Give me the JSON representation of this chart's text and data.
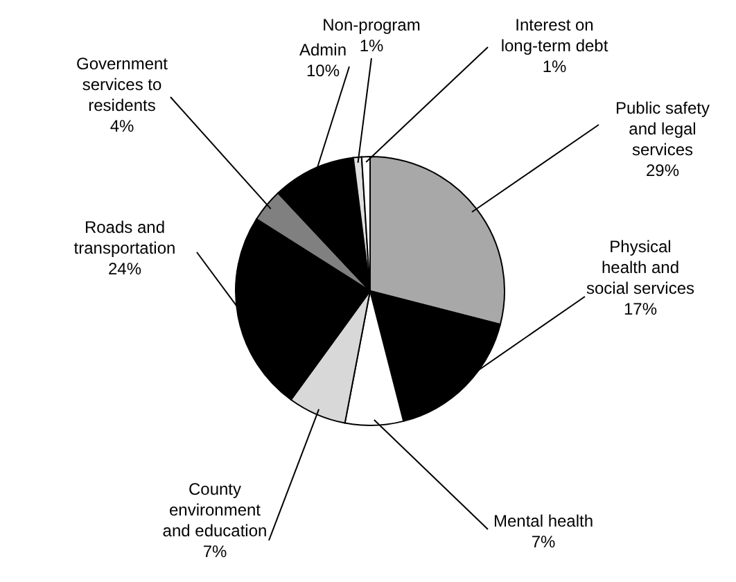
{
  "chart_data": {
    "type": "pie",
    "categories": [
      "Public safety and legal services",
      "Physical health and social services",
      "Mental health",
      "County environment and education",
      "Roads and transportation",
      "Government services to residents",
      "Admin",
      "Non-program",
      "Interest on long-term debt"
    ],
    "values": [
      29,
      17,
      7,
      7,
      24,
      4,
      10,
      1,
      1
    ],
    "colors": [
      "#a8a8a8",
      "#000000",
      "#ffffff",
      "#d8d8d8",
      "#000000",
      "#808080",
      "#000000",
      "#e0e0e0",
      "#ffffff"
    ],
    "value_labels": [
      "29%",
      "17%",
      "7%",
      "7%",
      "24%",
      "4%",
      "10%",
      "1%",
      "1%"
    ]
  }
}
